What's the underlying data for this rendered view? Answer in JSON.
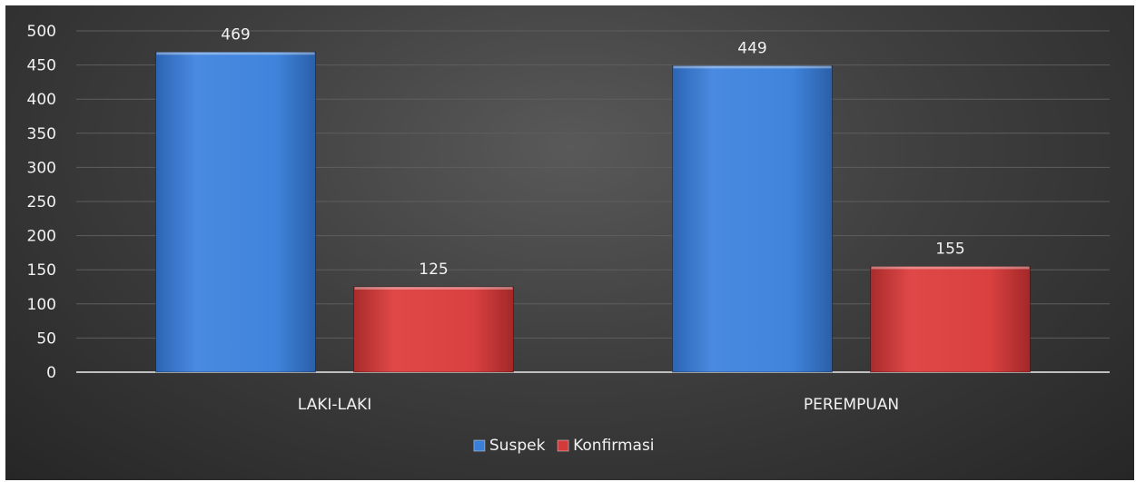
{
  "chart_data": {
    "type": "bar",
    "categories": [
      "LAKI-LAKI",
      "PEREMPUAN"
    ],
    "series": [
      {
        "name": "Suspek",
        "values": [
          469,
          449
        ]
      },
      {
        "name": "Konfirmasi",
        "values": [
          125,
          155
        ]
      }
    ],
    "ylim": [
      0,
      500
    ],
    "yticks": [
      0,
      50,
      100,
      150,
      200,
      250,
      300,
      350,
      400,
      450,
      500
    ],
    "grid": true,
    "legend": "bottom",
    "colors": {
      "series": [
        "#3a7fd8",
        "#d33a3a"
      ],
      "text": "#f2f2f2",
      "gridline": "#5e5e5e",
      "axis": "#bfbfbf"
    }
  }
}
